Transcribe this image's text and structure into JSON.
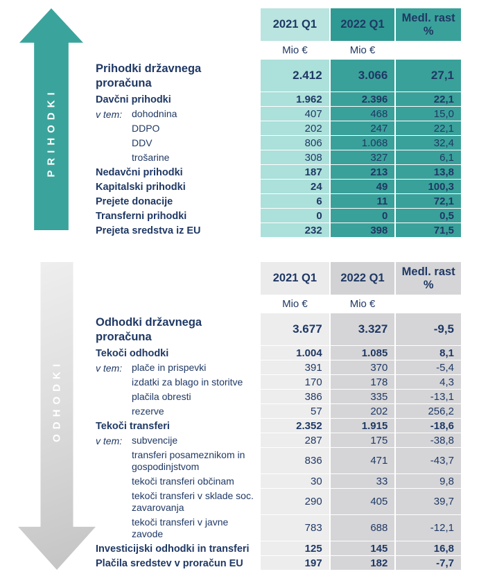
{
  "colors": {
    "teal_arrow": "#3aa49c",
    "teal_light": "#ace0da",
    "teal_mid": "#3aa19a",
    "teal_header_light": "#b9e4df",
    "teal_header_mid": "#2f9a93",
    "gray_light": "#ededee",
    "gray_mid": "#d5d5d7",
    "gray_header_light": "#ebebec",
    "gray_header_mid": "#d2d2d4",
    "arrow_gray_start": "#efefef",
    "arrow_gray_end": "#c3c3c3",
    "text_navy": "#1f3864"
  },
  "revenues": {
    "arrow_label": "PRIHODKI",
    "header": {
      "col_2021": "2021 Q1",
      "col_2022": "2022 Q1",
      "col_growth": "Medl. rast %"
    },
    "unit_label": "Mio €",
    "rows": [
      {
        "kind": "title",
        "label": "Prihodki državnega proračuna",
        "values": [
          "2.412",
          "3.066",
          "27,1"
        ]
      },
      {
        "kind": "section",
        "label": "Davčni prihodki",
        "values": [
          "1.962",
          "2.396",
          "22,1"
        ]
      },
      {
        "kind": "sub",
        "prefix": "v tem:",
        "label": "dohodnina",
        "values": [
          "407",
          "468",
          "15,0"
        ]
      },
      {
        "kind": "sub",
        "label": "DDPO",
        "values": [
          "202",
          "247",
          "22,1"
        ]
      },
      {
        "kind": "sub",
        "label": "DDV",
        "values": [
          "806",
          "1.068",
          "32,4"
        ]
      },
      {
        "kind": "sub",
        "label": "trošarine",
        "values": [
          "308",
          "327",
          "6,1"
        ]
      },
      {
        "kind": "section",
        "label": "Nedavčni prihodki",
        "values": [
          "187",
          "213",
          "13,8"
        ]
      },
      {
        "kind": "section",
        "label": "Kapitalski prihodki",
        "values": [
          "24",
          "49",
          "100,3"
        ]
      },
      {
        "kind": "section",
        "label": "Prejete donacije",
        "values": [
          "6",
          "11",
          "72,1"
        ]
      },
      {
        "kind": "section",
        "label": "Transferni prihodki",
        "values": [
          "0",
          "0",
          "0,5"
        ]
      },
      {
        "kind": "section",
        "label": "Prejeta sredstva iz EU",
        "values": [
          "232",
          "398",
          "71,5"
        ]
      }
    ]
  },
  "expenditures": {
    "arrow_label": "ODHODKI",
    "header": {
      "col_2021": "2021 Q1",
      "col_2022": "2022 Q1",
      "col_growth": "Medl. rast %"
    },
    "unit_label": "Mio €",
    "rows": [
      {
        "kind": "title",
        "label": "Odhodki državnega proračuna",
        "values": [
          "3.677",
          "3.327",
          "-9,5"
        ]
      },
      {
        "kind": "section",
        "label": "Tekoči odhodki",
        "values": [
          "1.004",
          "1.085",
          "8,1"
        ]
      },
      {
        "kind": "sub",
        "prefix": "v tem:",
        "label": "plače in prispevki",
        "values": [
          "391",
          "370",
          "-5,4"
        ]
      },
      {
        "kind": "sub",
        "label": "izdatki za blago in storitve",
        "values": [
          "170",
          "178",
          "4,3"
        ]
      },
      {
        "kind": "sub",
        "label": "plačila obresti",
        "values": [
          "386",
          "335",
          "-13,1"
        ]
      },
      {
        "kind": "sub",
        "label": "rezerve",
        "values": [
          "57",
          "202",
          "256,2"
        ]
      },
      {
        "kind": "section",
        "label": "Tekoči transferi",
        "values": [
          "2.352",
          "1.915",
          "-18,6"
        ]
      },
      {
        "kind": "sub",
        "prefix": "v tem:",
        "label": "subvencije",
        "values": [
          "287",
          "175",
          "-38,8"
        ]
      },
      {
        "kind": "sub",
        "label": "transferi posameznikom in gospodinjstvom",
        "values": [
          "836",
          "471",
          "-43,7"
        ]
      },
      {
        "kind": "sub",
        "label": "tekoči transferi občinam",
        "values": [
          "30",
          "33",
          "9,8"
        ]
      },
      {
        "kind": "sub",
        "label": "tekoči transferi v sklade soc. zavarovanja",
        "values": [
          "290",
          "405",
          "39,7"
        ]
      },
      {
        "kind": "sub",
        "label": "tekoči transferi v javne zavode",
        "values": [
          "783",
          "688",
          "-12,1"
        ]
      },
      {
        "kind": "section",
        "label": "Investicijski odhodki in transferi",
        "values": [
          "125",
          "145",
          "16,8"
        ]
      },
      {
        "kind": "section",
        "label": "Plačila sredstev v proračun EU",
        "values": [
          "197",
          "182",
          "-7,7"
        ]
      }
    ]
  }
}
